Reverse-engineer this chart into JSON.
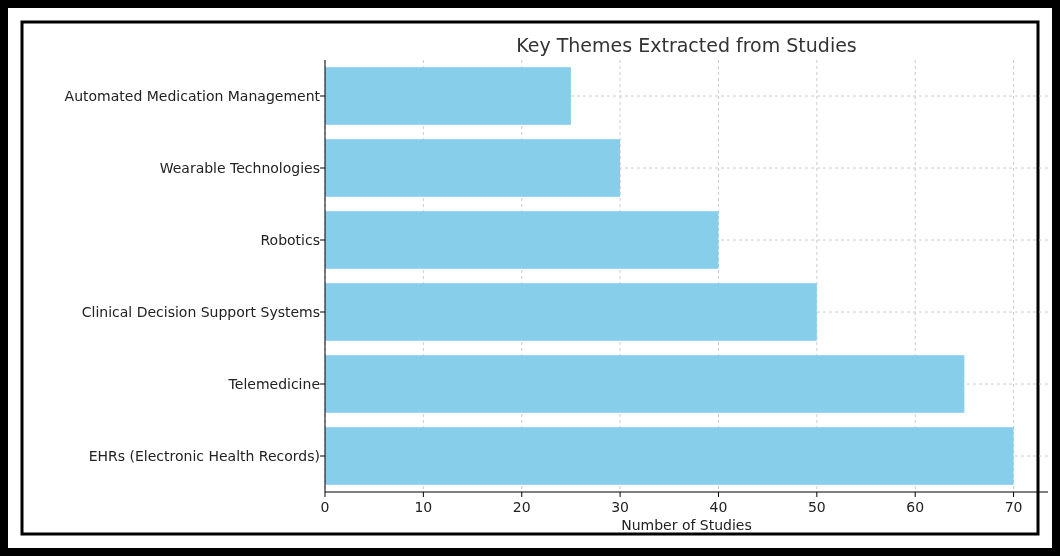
{
  "chart_data": {
    "type": "bar",
    "orientation": "horizontal",
    "title": "Key Themes Extracted from Studies",
    "xlabel": "Number of Studies",
    "categories": [
      "Automated Medication Management",
      "Wearable Technologies",
      "Robotics",
      "Clinical Decision Support Systems",
      "Telemedicine",
      "EHRs (Electronic Health Records)"
    ],
    "values": [
      25,
      30,
      40,
      50,
      65,
      70
    ],
    "color": "#87ceeb",
    "xlim": [
      0,
      73.5
    ],
    "xticks": [
      0,
      10,
      20,
      30,
      40,
      50,
      60,
      70
    ],
    "grid": true
  }
}
